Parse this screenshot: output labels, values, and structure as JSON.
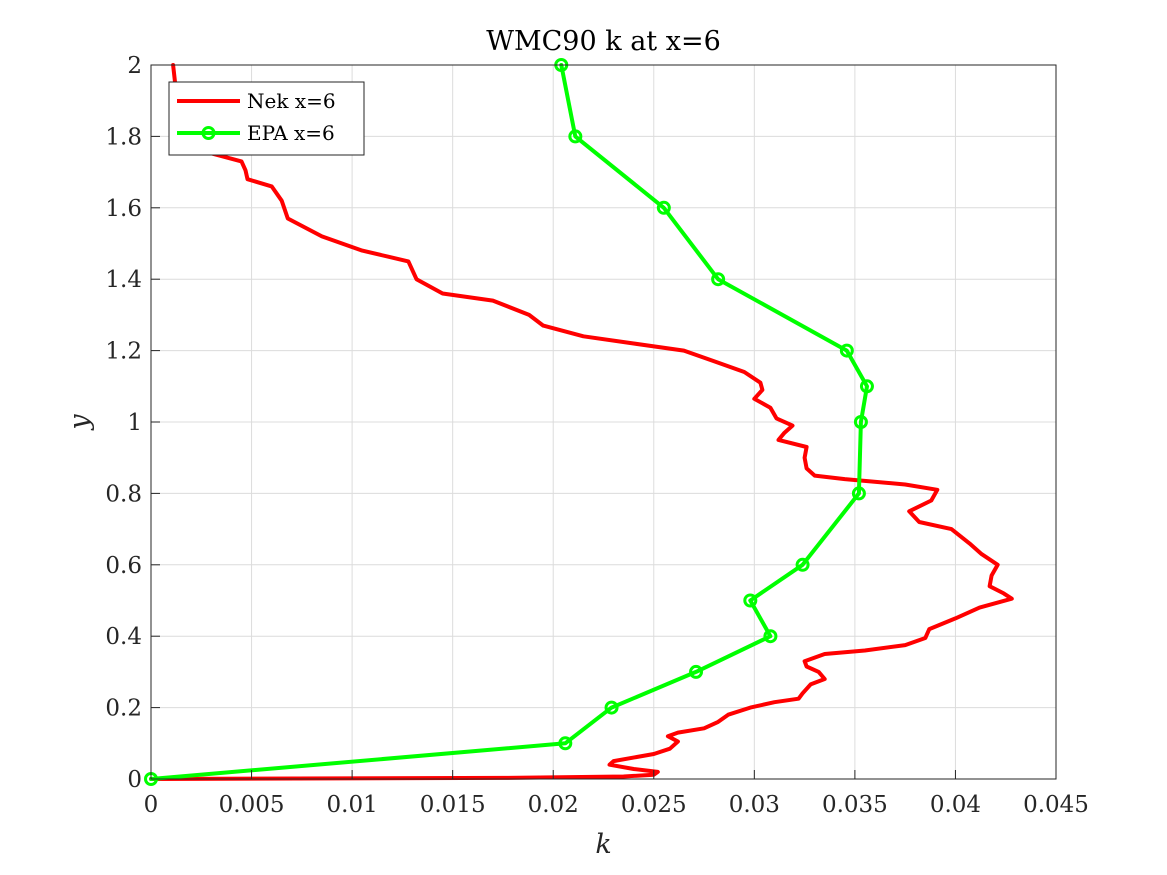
{
  "chart_data": {
    "type": "line",
    "title": "WMC90 k at x=6",
    "xlabel": "k",
    "ylabel": "y",
    "xlim": [
      0,
      0.045
    ],
    "ylim": [
      0,
      2
    ],
    "xticks": [
      0,
      0.005,
      0.01,
      0.015,
      0.02,
      0.025,
      0.03,
      0.035,
      0.04,
      0.045
    ],
    "xtick_labels": [
      "0",
      "0.005",
      "0.01",
      "0.015",
      "0.02",
      "0.025",
      "0.03",
      "0.035",
      "0.04",
      "0.045"
    ],
    "yticks": [
      0,
      0.2,
      0.4,
      0.6,
      0.8,
      1,
      1.2,
      1.4,
      1.6,
      1.8,
      2
    ],
    "ytick_labels": [
      "0",
      "0.2",
      "0.4",
      "0.6",
      "0.8",
      "1",
      "1.2",
      "1.4",
      "1.6",
      "1.8",
      "2"
    ],
    "grid": true,
    "legend_position": "top-left",
    "series": [
      {
        "name": "Nek x=6",
        "color": "#ff0000",
        "marker": "none",
        "points": [
          [
            0,
            0
          ],
          [
            0.0175,
            0.003
          ],
          [
            0.0235,
            0.007
          ],
          [
            0.025,
            0.012
          ],
          [
            0.0252,
            0.02
          ],
          [
            0.024,
            0.028
          ],
          [
            0.0228,
            0.04
          ],
          [
            0.023,
            0.05
          ],
          [
            0.025,
            0.07
          ],
          [
            0.0258,
            0.085
          ],
          [
            0.0262,
            0.105
          ],
          [
            0.0257,
            0.12
          ],
          [
            0.0262,
            0.13
          ],
          [
            0.0275,
            0.142
          ],
          [
            0.0282,
            0.16
          ],
          [
            0.0287,
            0.18
          ],
          [
            0.0298,
            0.2
          ],
          [
            0.031,
            0.215
          ],
          [
            0.0322,
            0.225
          ],
          [
            0.0324,
            0.24
          ],
          [
            0.0328,
            0.265
          ],
          [
            0.0335,
            0.28
          ],
          [
            0.0332,
            0.3
          ],
          [
            0.0326,
            0.315
          ],
          [
            0.0325,
            0.33
          ],
          [
            0.0335,
            0.35
          ],
          [
            0.0355,
            0.36
          ],
          [
            0.0375,
            0.375
          ],
          [
            0.0385,
            0.395
          ],
          [
            0.0387,
            0.42
          ],
          [
            0.04,
            0.45
          ],
          [
            0.0412,
            0.48
          ],
          [
            0.0428,
            0.505
          ],
          [
            0.0424,
            0.52
          ],
          [
            0.0417,
            0.54
          ],
          [
            0.0418,
            0.57
          ],
          [
            0.0421,
            0.6
          ],
          [
            0.0413,
            0.63
          ],
          [
            0.0407,
            0.66
          ],
          [
            0.0398,
            0.7
          ],
          [
            0.0382,
            0.72
          ],
          [
            0.0377,
            0.75
          ],
          [
            0.0388,
            0.78
          ],
          [
            0.0391,
            0.81
          ],
          [
            0.0375,
            0.825
          ],
          [
            0.0345,
            0.84
          ],
          [
            0.033,
            0.85
          ],
          [
            0.0326,
            0.87
          ],
          [
            0.0325,
            0.9
          ],
          [
            0.0326,
            0.93
          ],
          [
            0.0312,
            0.95
          ],
          [
            0.0315,
            0.97
          ],
          [
            0.0319,
            0.99
          ],
          [
            0.0311,
            1.01
          ],
          [
            0.0308,
            1.04
          ],
          [
            0.03,
            1.065
          ],
          [
            0.0304,
            1.09
          ],
          [
            0.0303,
            1.11
          ],
          [
            0.0295,
            1.14
          ],
          [
            0.028,
            1.17
          ],
          [
            0.0265,
            1.2
          ],
          [
            0.024,
            1.22
          ],
          [
            0.0215,
            1.24
          ],
          [
            0.0195,
            1.27
          ],
          [
            0.0188,
            1.3
          ],
          [
            0.017,
            1.34
          ],
          [
            0.0145,
            1.36
          ],
          [
            0.0132,
            1.4
          ],
          [
            0.0128,
            1.45
          ],
          [
            0.0105,
            1.48
          ],
          [
            0.0085,
            1.52
          ],
          [
            0.0068,
            1.57
          ],
          [
            0.0065,
            1.62
          ],
          [
            0.006,
            1.66
          ],
          [
            0.0048,
            1.68
          ],
          [
            0.0047,
            1.705
          ],
          [
            0.0045,
            1.73
          ],
          [
            0.0025,
            1.76
          ],
          [
            0.0015,
            1.79
          ],
          [
            0.0012,
            1.85
          ],
          [
            0.0011,
            1.9
          ],
          [
            0.0012,
            1.95
          ],
          [
            0.0011,
            2
          ]
        ]
      },
      {
        "name": "EPA x=6",
        "color": "#00ff00",
        "marker": "circle",
        "points": [
          [
            0,
            0
          ],
          [
            0.0206,
            0.1
          ],
          [
            0.0229,
            0.2
          ],
          [
            0.0271,
            0.3
          ],
          [
            0.0308,
            0.4
          ],
          [
            0.0298,
            0.5
          ],
          [
            0.0324,
            0.6
          ],
          [
            0.0352,
            0.8
          ],
          [
            0.0353,
            1.0
          ],
          [
            0.0356,
            1.1
          ],
          [
            0.0346,
            1.2
          ],
          [
            0.0282,
            1.4
          ],
          [
            0.0255,
            1.6
          ],
          [
            0.0211,
            1.8
          ],
          [
            0.0204,
            2.0
          ]
        ]
      }
    ]
  }
}
